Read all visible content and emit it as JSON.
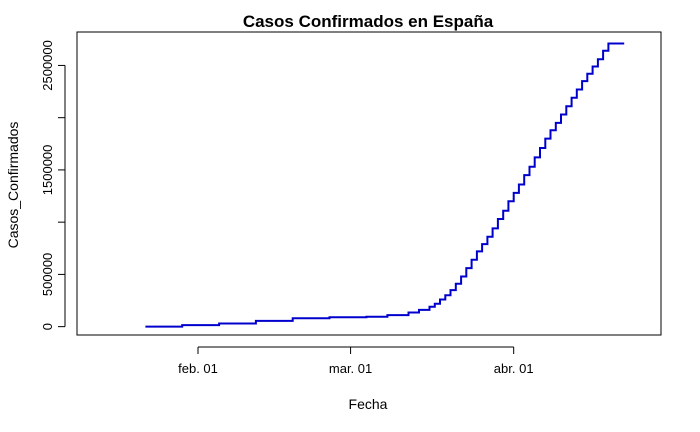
{
  "chart_data": {
    "type": "line",
    "step": true,
    "title": "Casos Confirmados en España",
    "xlabel": "Fecha",
    "ylabel": "Casos_Confirmados",
    "line_color": "#0000CD",
    "grid": false,
    "x_ticks": [
      {
        "date": "2020-02-01",
        "label": "feb. 01"
      },
      {
        "date": "2020-03-01",
        "label": "mar. 01"
      },
      {
        "date": "2020-04-01",
        "label": "abr. 01"
      }
    ],
    "y_ticks": [
      0,
      500000,
      1000000,
      1500000,
      2000000,
      2500000
    ],
    "y_tick_labels": [
      "0",
      "500000",
      "",
      "1500000",
      "",
      "2500000"
    ],
    "xlim": [
      "2020-01-09",
      "2020-04-29"
    ],
    "ylim": [
      -80000,
      2820000
    ],
    "series": [
      {
        "x": [
          "2020-01-22",
          "2020-01-29",
          "2020-02-05",
          "2020-02-12",
          "2020-02-19",
          "2020-02-26",
          "2020-03-04",
          "2020-03-08",
          "2020-03-12",
          "2020-03-14",
          "2020-03-16",
          "2020-03-17",
          "2020-03-18",
          "2020-03-19",
          "2020-03-20",
          "2020-03-21",
          "2020-03-22",
          "2020-03-23",
          "2020-03-24",
          "2020-03-25",
          "2020-03-26",
          "2020-03-27",
          "2020-03-28",
          "2020-03-29",
          "2020-03-30",
          "2020-03-31",
          "2020-04-01",
          "2020-04-02",
          "2020-04-03",
          "2020-04-04",
          "2020-04-05",
          "2020-04-06",
          "2020-04-07",
          "2020-04-08",
          "2020-04-09",
          "2020-04-10",
          "2020-04-11",
          "2020-04-12",
          "2020-04-13",
          "2020-04-14",
          "2020-04-15",
          "2020-04-16",
          "2020-04-17",
          "2020-04-18",
          "2020-04-19",
          "2020-04-20",
          "2020-04-21",
          "2020-04-22"
        ],
        "y": [
          0,
          15000,
          30000,
          55000,
          80000,
          90000,
          95000,
          110000,
          135000,
          160000,
          190000,
          220000,
          260000,
          300000,
          350000,
          410000,
          480000,
          560000,
          640000,
          720000,
          790000,
          860000,
          940000,
          1030000,
          1110000,
          1200000,
          1280000,
          1360000,
          1450000,
          1530000,
          1620000,
          1710000,
          1800000,
          1880000,
          1950000,
          2030000,
          2110000,
          2190000,
          2270000,
          2350000,
          2420000,
          2490000,
          2560000,
          2640000,
          2710000,
          2710000,
          2710000,
          2710000
        ]
      }
    ]
  }
}
